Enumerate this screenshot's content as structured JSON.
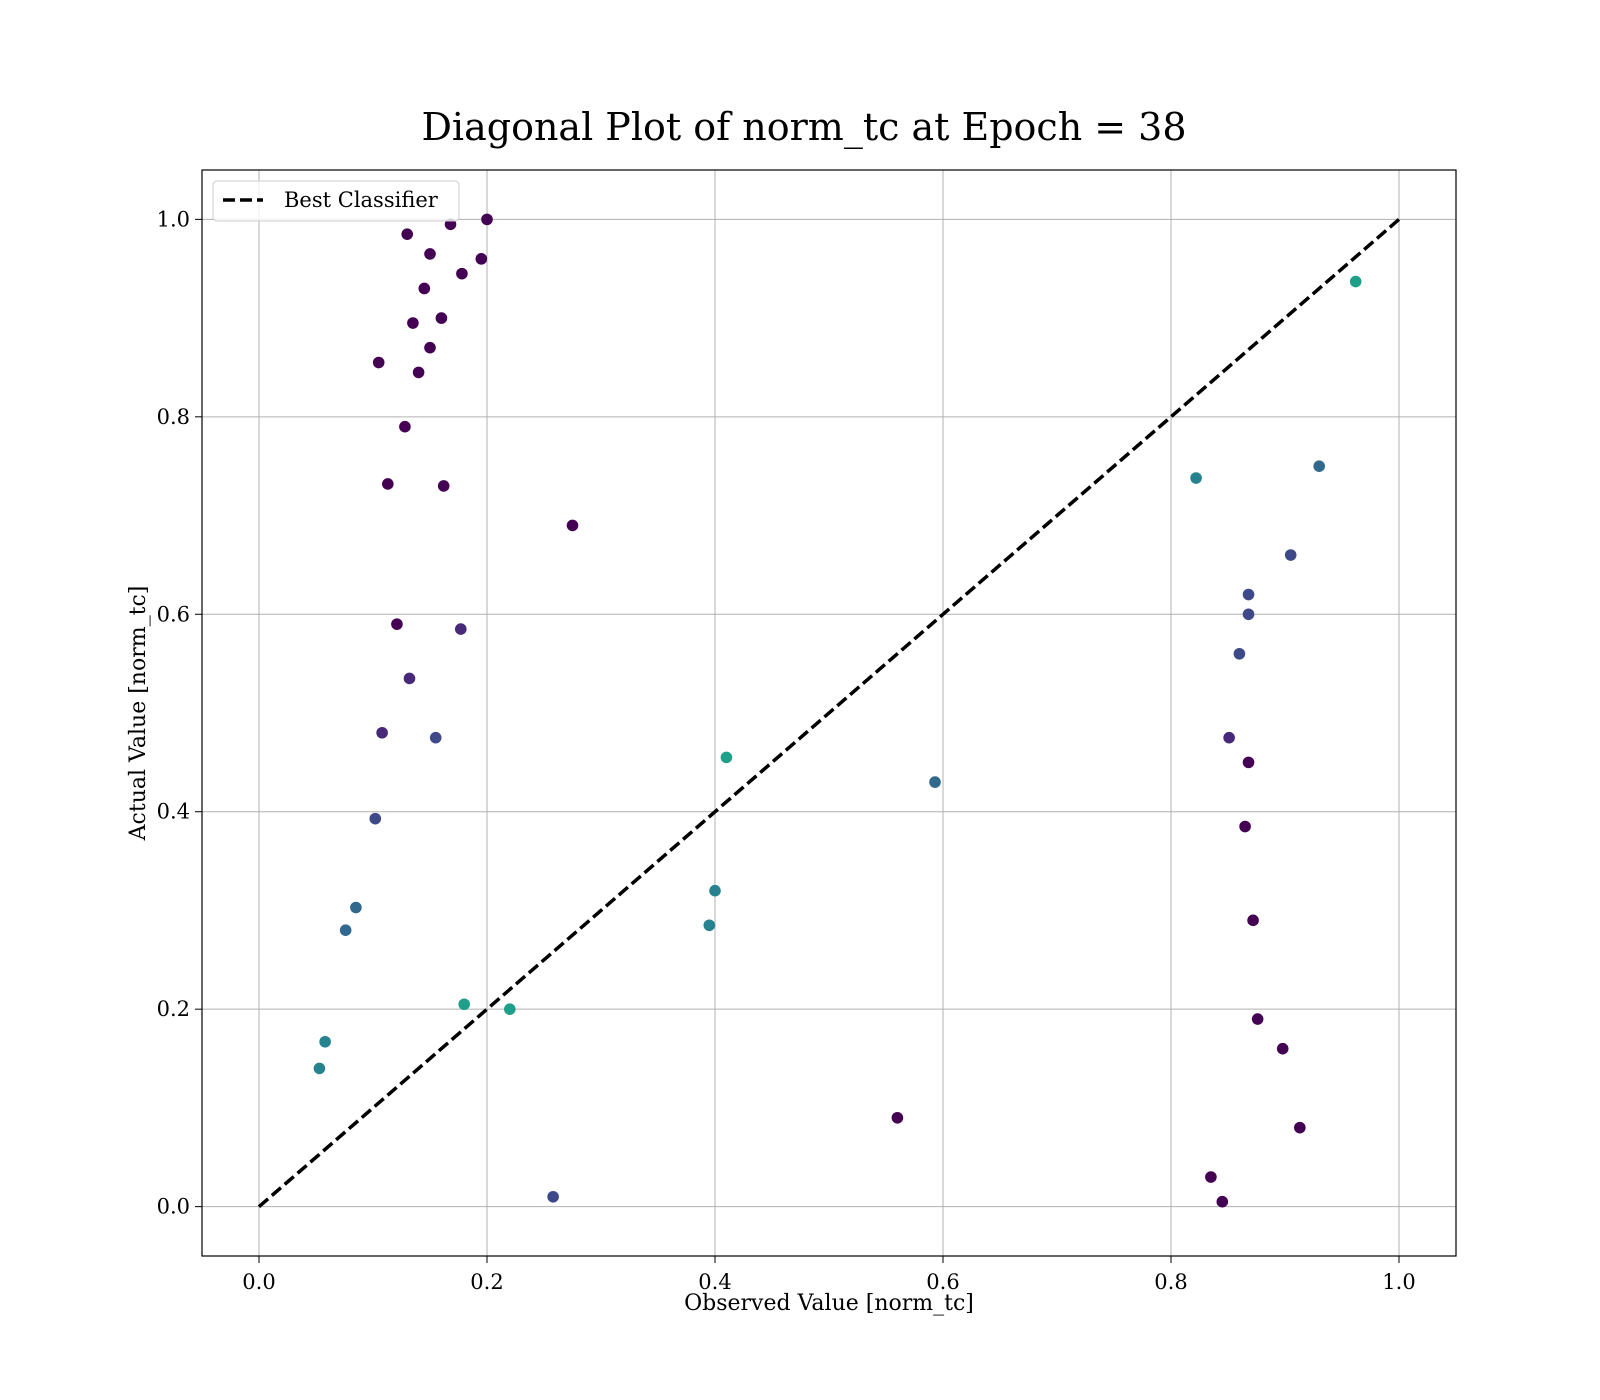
{
  "chart_data": {
    "type": "scatter",
    "title": "Diagonal Plot of norm_tc at Epoch = 38",
    "xlabel": "Observed Value [norm_tc]",
    "ylabel": "Actual Value [norm_tc]",
    "xlim": [
      -0.05,
      1.05
    ],
    "ylim": [
      -0.05,
      1.05
    ],
    "x_ticks": [
      "0.0",
      "0.2",
      "0.4",
      "0.6",
      "0.8",
      "1.0"
    ],
    "y_ticks": [
      "0.0",
      "0.2",
      "0.4",
      "0.6",
      "0.8",
      "1.0"
    ],
    "x_tick_values": [
      0.0,
      0.2,
      0.4,
      0.6,
      0.8,
      1.0
    ],
    "y_tick_values": [
      0.0,
      0.2,
      0.4,
      0.6,
      0.8,
      1.0
    ],
    "grid": true,
    "legend_position": "top-left",
    "legend": [
      {
        "label": "Best Classifier",
        "style": "dashed",
        "color": "#000000"
      }
    ],
    "reference_line": {
      "label": "Best Classifier",
      "x": [
        0.0,
        1.0
      ],
      "y": [
        0.0,
        1.0
      ]
    },
    "colormap": [
      "#440154",
      "#482878",
      "#3e4989",
      "#31688e",
      "#26828e",
      "#1f9e89",
      "#35b779",
      "#6ece58",
      "#b5de2b"
    ],
    "series": [
      {
        "name": "",
        "points": [
          [
            0.105,
            0.855
          ],
          [
            0.13,
            0.985
          ],
          [
            0.145,
            0.93
          ],
          [
            0.16,
            0.9
          ],
          [
            0.135,
            0.895
          ],
          [
            0.113,
            0.732
          ],
          [
            0.14,
            0.845
          ],
          [
            0.15,
            0.87
          ],
          [
            0.128,
            0.79
          ],
          [
            0.162,
            0.73
          ],
          [
            0.121,
            0.59
          ],
          [
            0.132,
            0.535
          ],
          [
            0.155,
            0.475
          ],
          [
            0.108,
            0.48
          ],
          [
            0.102,
            0.393
          ],
          [
            0.085,
            0.303
          ],
          [
            0.076,
            0.28
          ],
          [
            0.053,
            0.14
          ],
          [
            0.058,
            0.167
          ],
          [
            0.913,
            0.08
          ],
          [
            0.898,
            0.16
          ],
          [
            0.876,
            0.19
          ],
          [
            0.872,
            0.29
          ],
          [
            0.865,
            0.385
          ],
          [
            0.868,
            0.45
          ],
          [
            0.851,
            0.475
          ],
          [
            0.86,
            0.56
          ],
          [
            0.868,
            0.6
          ],
          [
            0.868,
            0.62
          ],
          [
            0.905,
            0.66
          ],
          [
            0.93,
            0.75
          ],
          [
            0.962,
            0.937
          ],
          [
            0.845,
            0.005
          ],
          [
            0.835,
            0.03
          ],
          [
            0.822,
            0.738
          ],
          [
            0.593,
            0.43
          ],
          [
            0.4,
            0.32
          ],
          [
            0.395,
            0.285
          ],
          [
            0.56,
            0.09
          ],
          [
            0.258,
            0.01
          ],
          [
            0.18,
            0.205
          ],
          [
            0.22,
            0.2
          ],
          [
            0.41,
            0.455
          ],
          [
            0.275,
            0.69
          ],
          [
            0.177,
            0.585
          ],
          [
            0.178,
            0.945
          ],
          [
            0.195,
            0.96
          ],
          [
            0.2,
            1.0
          ],
          [
            0.168,
            0.995
          ],
          [
            0.15,
            0.965
          ]
        ]
      }
    ]
  }
}
